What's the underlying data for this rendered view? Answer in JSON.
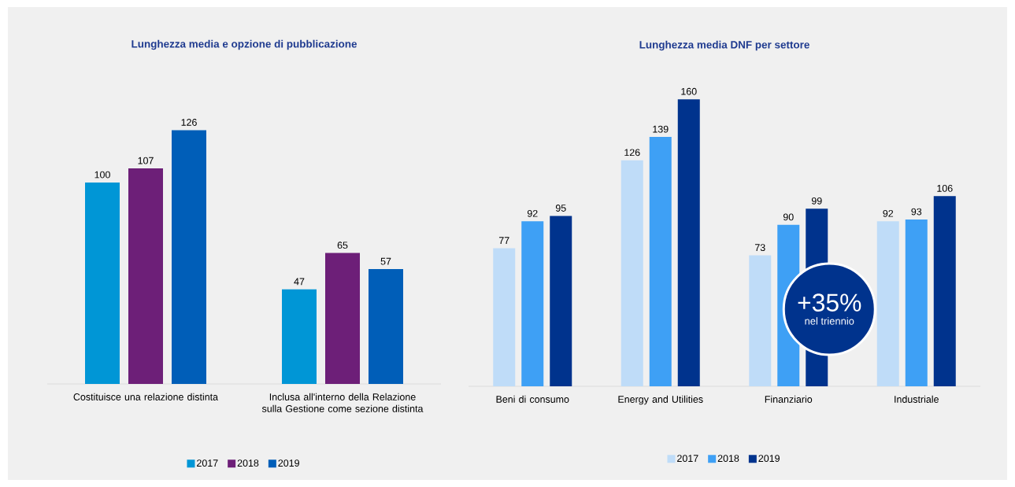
{
  "chart_data": [
    {
      "type": "bar",
      "title": "Lunghezza media e opzione di pubblicazione",
      "categories": [
        "Costituisce una relazione distinta",
        "Inclusa all'interno della Relazione sulla Gestione come sezione distinta"
      ],
      "series": [
        {
          "name": "2017",
          "color": "#0096d6",
          "values": [
            100,
            47
          ]
        },
        {
          "name": "2018",
          "color": "#6d1f78",
          "values": [
            107,
            65
          ]
        },
        {
          "name": "2019",
          "color": "#005eb8",
          "values": [
            126,
            57
          ]
        }
      ],
      "data_labels": true,
      "legend": "bottom"
    },
    {
      "type": "bar",
      "title": "Lunghezza media DNF per settore",
      "categories": [
        "Beni di consumo",
        "Energy and Utilities",
        "Finanziario",
        "Industriale"
      ],
      "series": [
        {
          "name": "2017",
          "color": "#bfdcf8",
          "values": [
            77,
            126,
            73,
            92
          ]
        },
        {
          "name": "2018",
          "color": "#3ea0f5",
          "values": [
            92,
            139,
            90,
            93
          ]
        },
        {
          "name": "2019",
          "color": "#00338d",
          "values": [
            95,
            160,
            99,
            106
          ]
        }
      ],
      "data_labels": true,
      "legend": "bottom",
      "annotations": [
        "+35%",
        "nel triennio"
      ]
    }
  ]
}
